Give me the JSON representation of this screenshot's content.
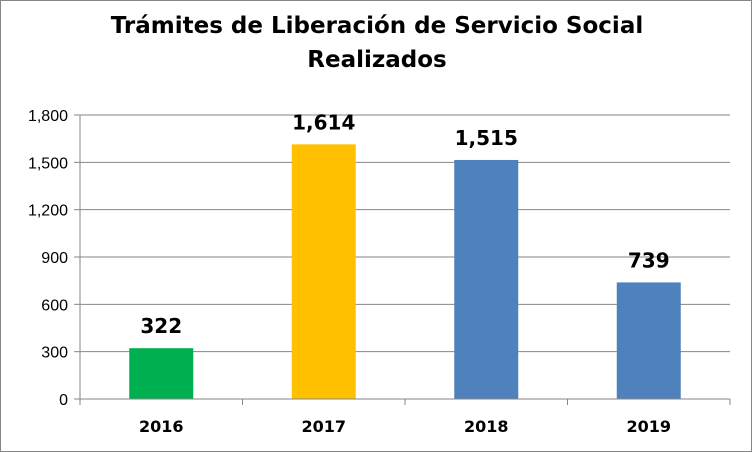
{
  "chart_data": {
    "type": "bar",
    "title": "Trámites de Liberación de Servicio Social Realizados",
    "title_lines": [
      "Trámites de Liberación de Servicio Social",
      "Realizados"
    ],
    "categories": [
      "2016",
      "2017",
      "2018",
      "2019"
    ],
    "values": [
      322,
      1614,
      1515,
      739
    ],
    "data_labels": [
      "322",
      "1,614",
      "1,515",
      "739"
    ],
    "bar_colors": [
      "#00B050",
      "#FFC000",
      "#4F81BD",
      "#4F81BD"
    ],
    "ylim": [
      0,
      1800
    ],
    "yticks": [
      0,
      300,
      600,
      900,
      1200,
      1500,
      1800
    ],
    "ytick_labels": [
      "0",
      "300",
      "600",
      "900",
      "1,200",
      "1,500",
      "1,800"
    ],
    "grid": true,
    "legend": "none",
    "xlabel": "",
    "ylabel": ""
  }
}
